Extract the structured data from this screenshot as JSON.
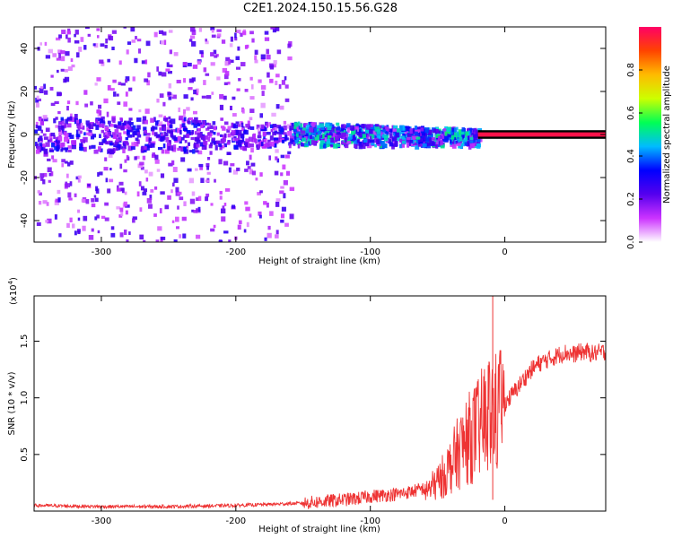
{
  "title": "C2E1.2024.150.15.56.G28",
  "chart_data": [
    {
      "type": "heatmap",
      "xlabel": "Height of straight line (km)",
      "ylabel": "Frequency (Hz)",
      "xlim": [
        -350,
        75
      ],
      "ylim": [
        -50,
        50
      ],
      "xticks": [
        -300,
        -200,
        -100,
        0
      ],
      "yticks": [
        -40,
        -20,
        0,
        20,
        40
      ],
      "colorbar": {
        "label": "Normalized spectral amplitude",
        "range": [
          0,
          1
        ],
        "ticks": [
          0.0,
          0.2,
          0.4,
          0.6,
          0.8
        ],
        "colors": [
          "#ffffff",
          "#cc33ff",
          "#5500ee",
          "#0000ff",
          "#00bbff",
          "#00ff55",
          "#ccff00",
          "#ffbb00",
          "#ff4400",
          "#ff0066"
        ]
      },
      "ridge": {
        "description_values": "carrier near 0 Hz, spread +/- 5 Hz from -230 to -20 km, narrow line above 0 km",
        "center_hz": 0,
        "narrow_line_start_km": -20
      }
    },
    {
      "type": "line",
      "xlabel": "Height of straight line (km)",
      "ylabel": "SNR (10 * v/v)",
      "multiplier": "(x10",
      "multiplier_exp": "4",
      "multiplier_close": ")",
      "xlim": [
        -350,
        75
      ],
      "ylim": [
        0,
        1.9
      ],
      "xticks": [
        -300,
        -200,
        -100,
        0
      ],
      "yticks": [
        0.5,
        1.0,
        1.5
      ],
      "color": "#ee3333",
      "series": [
        {
          "x": [
            -350,
            -300,
            -250,
            -200,
            -175,
            -150,
            -140,
            -130,
            -120,
            -110,
            -100,
            -90,
            -80,
            -70,
            -60,
            -55,
            -50,
            -45,
            -40,
            -35,
            -30,
            -25,
            -20,
            -15,
            -10,
            -5,
            0,
            5,
            10,
            15,
            20,
            25,
            30,
            35,
            40,
            45,
            50,
            55,
            60,
            65,
            70,
            75
          ],
          "y": [
            0.05,
            0.04,
            0.04,
            0.05,
            0.06,
            0.07,
            0.08,
            0.09,
            0.1,
            0.11,
            0.13,
            0.14,
            0.15,
            0.17,
            0.2,
            0.24,
            0.3,
            0.38,
            0.48,
            0.6,
            0.7,
            0.78,
            0.85,
            0.95,
            1.05,
            1.0,
            0.95,
            1.02,
            1.1,
            1.18,
            1.25,
            1.3,
            1.33,
            1.35,
            1.38,
            1.4,
            1.38,
            1.4,
            1.41,
            1.39,
            1.4,
            1.41
          ]
        }
      ]
    }
  ]
}
